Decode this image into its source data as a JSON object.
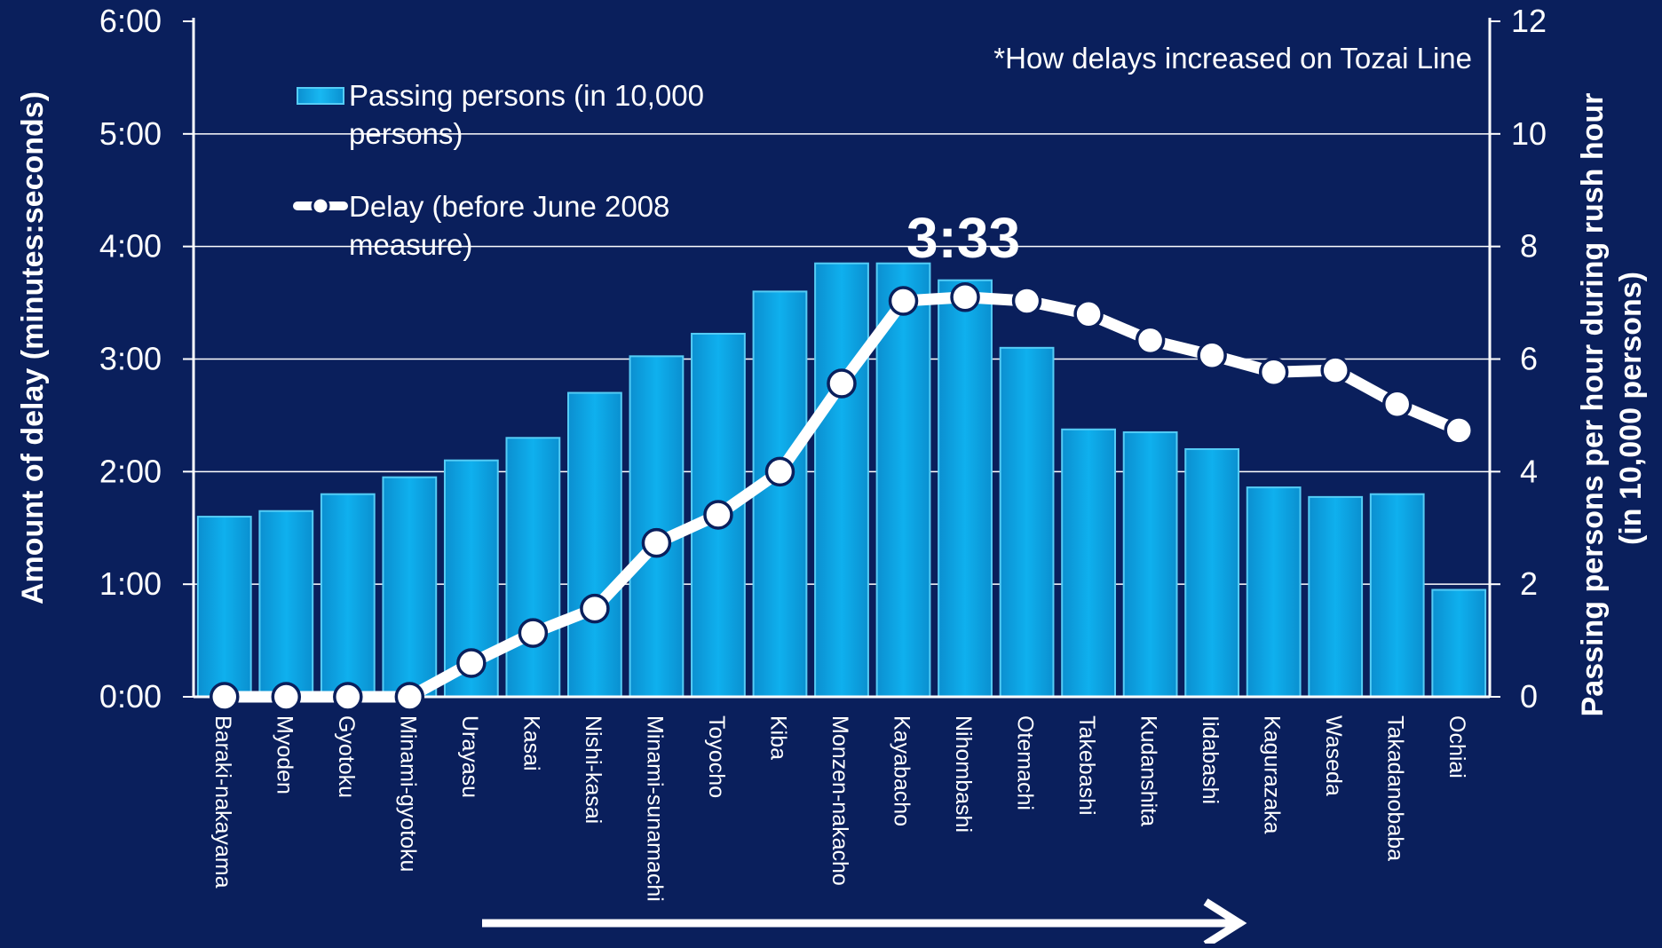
{
  "chart_data": {
    "type": "bar+line",
    "annotation": "*How delays increased on Tozai Line",
    "peak_label": "3:33",
    "y_left_label": "Amount of delay (minutes:seconds)",
    "y_right_label_line1": "Passing persons per hour during rush hour",
    "y_right_label_line2": "(in 10,000 persons)",
    "y_left_ticks": [
      "0:00",
      "1:00",
      "2:00",
      "3:00",
      "4:00",
      "5:00",
      "6:00"
    ],
    "y_left_range_seconds": [
      0,
      360
    ],
    "y_right_ticks": [
      "0",
      "2",
      "4",
      "6",
      "8",
      "10",
      "12"
    ],
    "y_right_range": [
      0,
      12
    ],
    "categories": [
      "Baraki-nakayama",
      "Myoden",
      "Gyotoku",
      "Minami-gyotoku",
      "Urayasu",
      "Kasai",
      "Nishi-kasai",
      "Minami-sunamachi",
      "Toyocho",
      "Kiba",
      "Monzen-nakacho",
      "Kayabacho",
      "Nihombashi",
      "Otemachi",
      "Takebashi",
      "Kudanshita",
      "Iidabashi",
      "Kagurazaka",
      "Waseda",
      "Takadanobaba",
      "Ochiai"
    ],
    "series": [
      {
        "name": "Passing persons (in 10,000 persons)",
        "axis": "right",
        "kind": "bar",
        "values": [
          3.2,
          3.3,
          3.6,
          3.9,
          4.2,
          4.6,
          5.4,
          6.05,
          6.45,
          7.2,
          7.7,
          7.7,
          7.4,
          6.2,
          4.75,
          4.7,
          4.4,
          3.72,
          3.55,
          3.6,
          1.9
        ]
      },
      {
        "name": "Delay (before June 2008 measure)",
        "axis": "left",
        "kind": "line",
        "unit": "seconds",
        "values": [
          0,
          0,
          0,
          0,
          18,
          34,
          47,
          82,
          97,
          120,
          167,
          211,
          213,
          211,
          204,
          190,
          182,
          173,
          174,
          156,
          142
        ]
      }
    ],
    "legend_position": "top-left",
    "bottom_arrow": "right"
  },
  "colors": {
    "background": "#0a1f5c",
    "bar_fill": "#0aa6e6",
    "bar_edge": "#55ccf5",
    "line": "#ffffff",
    "text": "#ffffff"
  }
}
